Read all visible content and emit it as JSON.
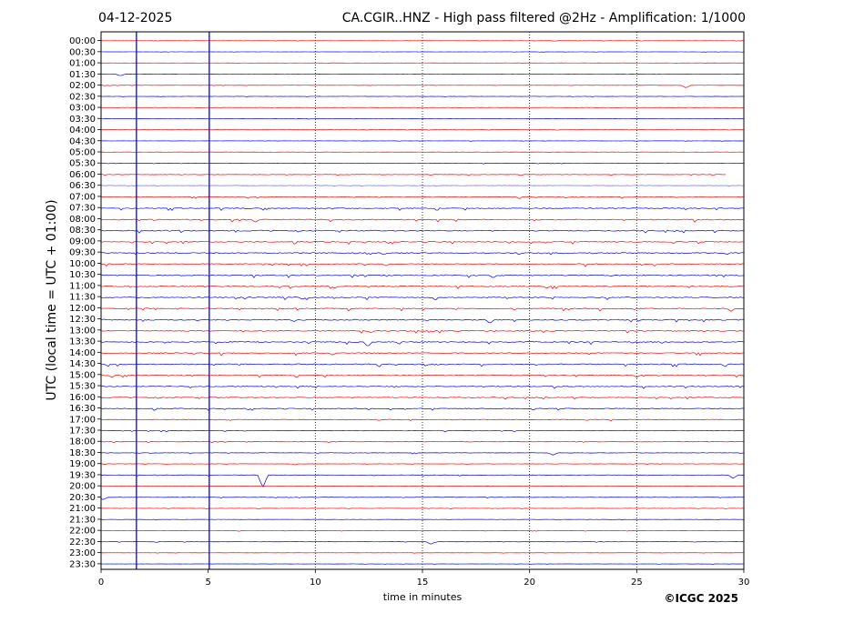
{
  "header": {
    "date": "04-12-2025",
    "title": "CA.CGIR..HNZ - High pass filtered @2Hz - Amplification: 1/1000"
  },
  "footer": {
    "copyright": "©ICGC 2025"
  },
  "chart_data": {
    "type": "line",
    "title": "CA.CGIR..HNZ - High pass filtered @2Hz - Amplification: 1/1000",
    "xlabel": "time in minutes",
    "ylabel": "UTC (local time = UTC + 01:00)",
    "xlim": [
      0,
      30
    ],
    "x_ticks": [
      "0",
      "5",
      "10",
      "15",
      "20",
      "25",
      "30"
    ],
    "grid": "vertical dotted at x = 10, 15, 20, 25",
    "trace_colors": [
      "#ff0000",
      "#0000ff"
    ],
    "rows": [
      "00:00",
      "00:30",
      "01:00",
      "01:30",
      "02:00",
      "02:30",
      "03:00",
      "03:30",
      "04:00",
      "04:30",
      "05:00",
      "05:30",
      "06:00",
      "06:30",
      "07:00",
      "07:30",
      "08:00",
      "08:30",
      "09:00",
      "09:30",
      "10:00",
      "10:30",
      "11:00",
      "11:30",
      "12:00",
      "12:30",
      "13:00",
      "13:30",
      "14:00",
      "14:30",
      "15:00",
      "15:30",
      "16:00",
      "16:30",
      "17:00",
      "17:30",
      "18:00",
      "18:30",
      "19:00",
      "19:30",
      "20:00",
      "20:30",
      "21:00",
      "21:30",
      "22:00",
      "22:30",
      "23:00",
      "23:30"
    ],
    "noise_level": [
      0.15,
      0.15,
      0.15,
      0.15,
      0.2,
      0.2,
      0.2,
      0.2,
      0.15,
      0.15,
      0.2,
      0.25,
      0.4,
      0.3,
      0.6,
      0.8,
      1.0,
      0.9,
      0.9,
      1.0,
      0.9,
      1.0,
      0.9,
      0.9,
      0.9,
      1.0,
      0.9,
      0.9,
      0.9,
      0.9,
      0.8,
      0.8,
      0.7,
      0.7,
      0.6,
      0.5,
      0.4,
      0.4,
      0.3,
      0.35,
      0.2,
      0.3,
      0.25,
      0.25,
      0.25,
      0.25,
      0.15,
      0.15
    ],
    "vertical_spikes": [
      {
        "x": 1.65,
        "rows": [
          0,
          47
        ]
      },
      {
        "x": 5.05,
        "rows": [
          0,
          47
        ]
      }
    ],
    "events": [
      {
        "row": 39,
        "x": 7.55,
        "amp": 14
      },
      {
        "row": 27,
        "x": 12.45,
        "amp": 6
      },
      {
        "row": 25,
        "x": 18.15,
        "amp": 5
      },
      {
        "row": 24,
        "x": 29.4,
        "amp": 4
      },
      {
        "row": 16,
        "x": 7.2,
        "amp": 4
      },
      {
        "row": 39,
        "x": 29.5,
        "amp": 4
      },
      {
        "row": 21,
        "x": 18.3,
        "amp": 4
      },
      {
        "row": 23,
        "x": 9.4,
        "amp": 3
      },
      {
        "row": 37,
        "x": 21.1,
        "amp": 3
      },
      {
        "row": 19,
        "x": 13.2,
        "amp": 3
      },
      {
        "row": 20,
        "x": 13.3,
        "amp": 3
      },
      {
        "row": 22,
        "x": 10.9,
        "amp": 3
      },
      {
        "row": 22,
        "x": 20.8,
        "amp": 3
      },
      {
        "row": 25,
        "x": 9.0,
        "amp": 3
      },
      {
        "row": 4,
        "x": 27.3,
        "amp": 3
      },
      {
        "row": 3,
        "x": 0.9,
        "amp": 2
      },
      {
        "row": 29,
        "x": 29.1,
        "amp": 3
      },
      {
        "row": 30,
        "x": 0.5,
        "amp": 3
      },
      {
        "row": 30,
        "x": 25.0,
        "amp": 3
      },
      {
        "row": 41,
        "x": 0.1,
        "amp": 3
      },
      {
        "row": 45,
        "x": 15.4,
        "amp": 3
      },
      {
        "row": 26,
        "x": 12.6,
        "amp": 3
      },
      {
        "row": 28,
        "x": 10.8,
        "amp": 3
      }
    ],
    "gaps": [
      {
        "row": 12,
        "from": 29.2,
        "to": 30
      },
      {
        "row": 13,
        "from": 5.3,
        "to": 30,
        "dim": true
      }
    ]
  }
}
